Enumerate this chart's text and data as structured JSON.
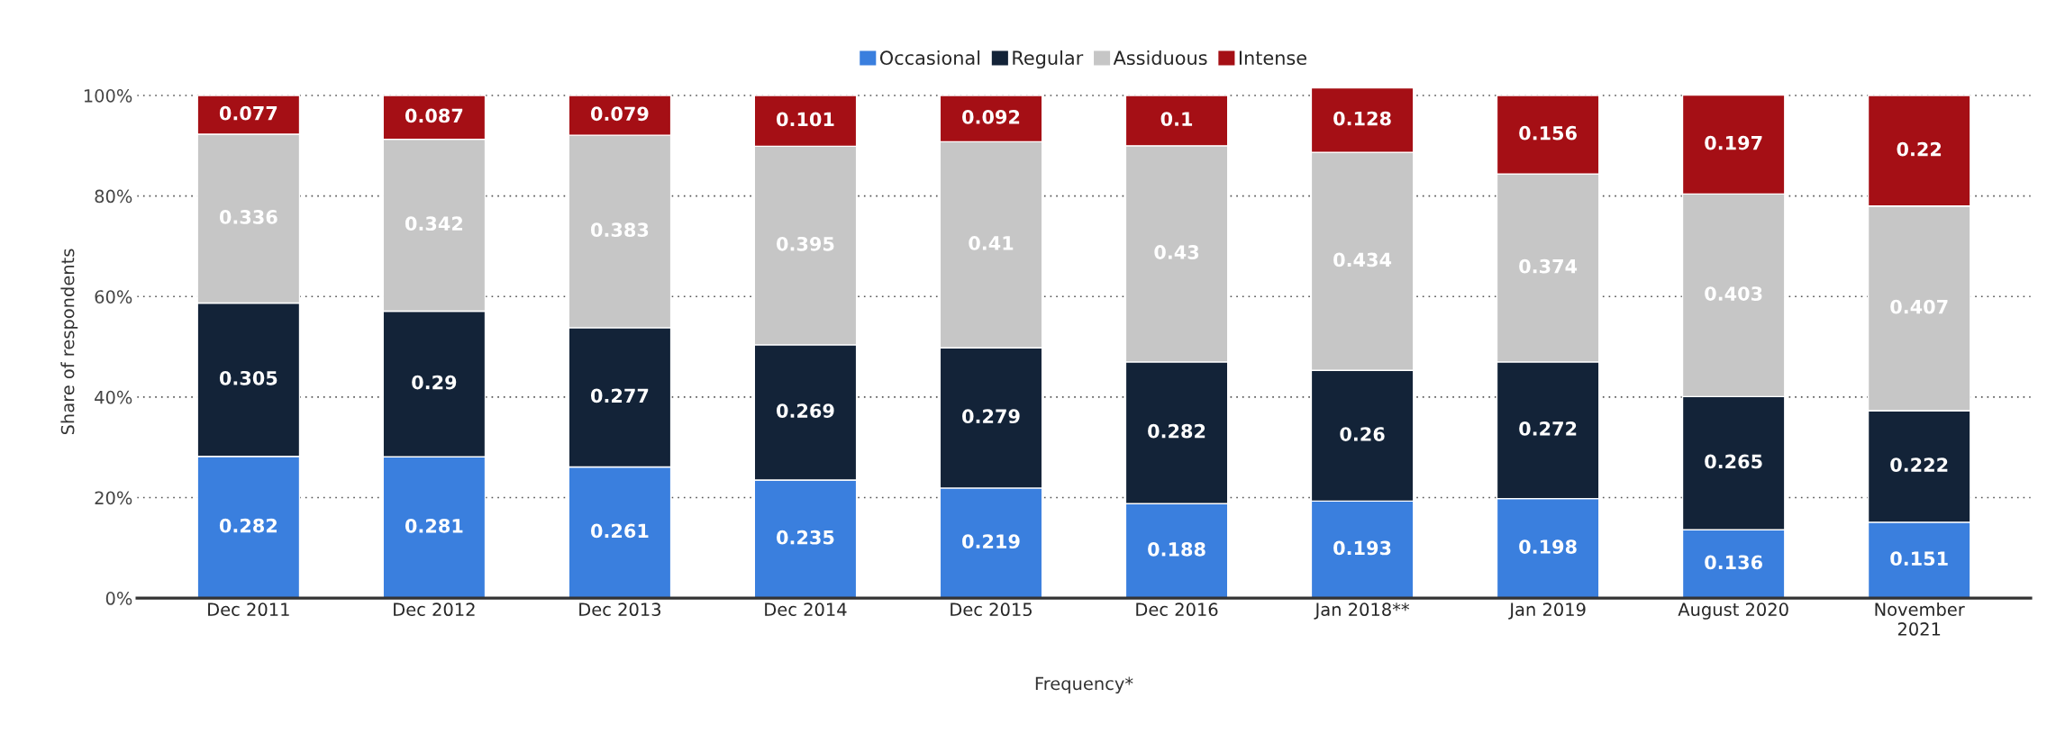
{
  "chart_data": {
    "type": "bar",
    "stacked": true,
    "xlabel": "Frequency*",
    "ylabel": "Share of respondents",
    "categories": [
      "Dec 2011",
      "Dec 2012",
      "Dec 2013",
      "Dec 2014",
      "Dec 2015",
      "Dec 2016",
      "Jan 2018**",
      "Jan 2019",
      "August 2020",
      "November\n2021"
    ],
    "series": [
      {
        "name": "Occasional",
        "color": "#3a7fde",
        "values": [
          0.282,
          0.281,
          0.261,
          0.235,
          0.219,
          0.188,
          0.193,
          0.198,
          0.136,
          0.151
        ]
      },
      {
        "name": "Regular",
        "color": "#132338",
        "values": [
          0.305,
          0.29,
          0.277,
          0.269,
          0.279,
          0.282,
          0.26,
          0.272,
          0.265,
          0.222
        ]
      },
      {
        "name": "Assiduous",
        "color": "#c6c6c6",
        "values": [
          0.336,
          0.342,
          0.383,
          0.395,
          0.41,
          0.43,
          0.434,
          0.374,
          0.403,
          0.407
        ]
      },
      {
        "name": "Intense",
        "color": "#a50f15",
        "values": [
          0.077,
          0.087,
          0.079,
          0.101,
          0.092,
          0.1,
          0.128,
          0.156,
          0.197,
          0.22
        ]
      }
    ],
    "ylim": [
      0,
      1.02
    ],
    "yticks": [
      {
        "value": 0,
        "label": "0%"
      },
      {
        "value": 0.2,
        "label": "20%"
      },
      {
        "value": 0.4,
        "label": "40%"
      },
      {
        "value": 0.6,
        "label": "60%"
      },
      {
        "value": 0.8,
        "label": "80%"
      },
      {
        "value": 1,
        "label": "100%"
      }
    ],
    "grid": "y",
    "legend": "top",
    "data_labels": true
  }
}
